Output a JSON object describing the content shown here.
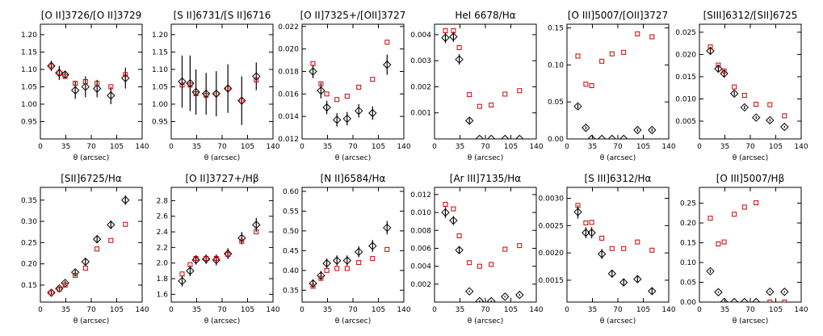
{
  "colors": {
    "obs": "#000000",
    "model": "#cc0000"
  },
  "xlabel": "θ (arcsec)",
  "chart_data": [
    {
      "type": "scatter",
      "title": "[O II]3726/[O II]3729",
      "xlim": [
        0,
        140
      ],
      "xticks": [
        0,
        35,
        70,
        105,
        140
      ],
      "ylim": [
        0.9,
        1.23
      ],
      "yticks": [
        0.95,
        1.0,
        1.05,
        1.1,
        1.15,
        1.2
      ],
      "ytick_labels": [
        "0.95",
        "1.00",
        "1.05",
        "1.10",
        "1.15",
        "1.20"
      ],
      "observed": {
        "marker": "diamond",
        "x": [
          15,
          26,
          34,
          48,
          62,
          78,
          97,
          117
        ],
        "y": [
          1.11,
          1.09,
          1.085,
          1.04,
          1.05,
          1.045,
          1.025,
          1.075
        ],
        "err": [
          0.015,
          0.02,
          0.01,
          0.025,
          0.03,
          0.025,
          0.025,
          0.03
        ]
      },
      "model": {
        "marker": "square",
        "x": [
          15,
          26,
          34,
          48,
          62,
          78,
          97,
          117
        ],
        "y": [
          1.11,
          1.09,
          1.08,
          1.06,
          1.065,
          1.06,
          1.05,
          1.085
        ]
      }
    },
    {
      "type": "scatter",
      "title": "[S II]6731/[S II]6716",
      "xlim": [
        0,
        140
      ],
      "xticks": [
        0,
        35,
        70,
        105,
        140
      ],
      "ylim": [
        0.9,
        1.23
      ],
      "yticks": [
        0.95,
        1.0,
        1.05,
        1.1,
        1.15,
        1.2
      ],
      "ytick_labels": [
        "0.95",
        "1.00",
        "1.05",
        "1.10",
        "1.15",
        "1.20"
      ],
      "observed": {
        "marker": "diamond",
        "x": [
          15,
          26,
          34,
          48,
          62,
          78,
          97,
          117
        ],
        "y": [
          1.065,
          1.06,
          1.035,
          1.03,
          1.03,
          1.045,
          1.01,
          1.08
        ],
        "err": [
          0.075,
          0.08,
          0.065,
          0.06,
          0.065,
          0.07,
          0.07,
          0.04
        ]
      },
      "model": {
        "marker": "square",
        "x": [
          15,
          26,
          34,
          48,
          62,
          78,
          97,
          117
        ],
        "y": [
          1.055,
          1.055,
          1.03,
          1.025,
          1.03,
          1.045,
          1.01,
          1.07
        ]
      }
    },
    {
      "type": "scatter",
      "title": "[O II]7325+/[OII]3727",
      "xlim": [
        0,
        140
      ],
      "xticks": [
        0,
        35,
        70,
        105,
        140
      ],
      "ylim": [
        0.012,
        0.0222
      ],
      "yticks": [
        0.012,
        0.014,
        0.016,
        0.018,
        0.02,
        0.022
      ],
      "ytick_labels": [
        "0.012",
        "0.014",
        "0.016",
        "0.018",
        "0.020",
        "0.022"
      ],
      "observed": {
        "marker": "diamond",
        "x": [
          15,
          26,
          34,
          48,
          62,
          78,
          97,
          117
        ],
        "y": [
          0.018,
          0.0163,
          0.0148,
          0.0137,
          0.0138,
          0.0145,
          0.0143,
          0.0186
        ],
        "err": [
          0.0006,
          0.0007,
          0.0006,
          0.0006,
          0.0006,
          0.0006,
          0.0006,
          0.0009
        ]
      },
      "model": {
        "marker": "square",
        "x": [
          15,
          26,
          34,
          48,
          62,
          78,
          97,
          117
        ],
        "y": [
          0.0187,
          0.0169,
          0.016,
          0.0155,
          0.0158,
          0.0166,
          0.0173,
          0.0206
        ]
      }
    },
    {
      "type": "scatter",
      "title": "HeI 6678/Hα",
      "xlim": [
        0,
        140
      ],
      "xticks": [
        0,
        35,
        70,
        105,
        140
      ],
      "ylim": [
        0.0,
        0.0044
      ],
      "yticks": [
        0.001,
        0.002,
        0.003,
        0.004
      ],
      "ytick_labels": [
        "0.001",
        "0.002",
        "0.003",
        "0.004"
      ],
      "observed": {
        "marker": "diamond",
        "x": [
          15,
          26,
          34,
          48,
          62,
          78,
          97,
          117
        ],
        "y": [
          0.00388,
          0.00392,
          0.00305,
          0.0007,
          0.0,
          0.0,
          0.0,
          0.0
        ],
        "err": [
          0.0002,
          0.0002,
          0.0002,
          0.0001,
          0.0,
          0.0,
          0.0,
          0.0
        ]
      },
      "model": {
        "marker": "square",
        "x": [
          15,
          26,
          34,
          48,
          62,
          78,
          97,
          117
        ],
        "y": [
          0.00415,
          0.00415,
          0.0035,
          0.0017,
          0.00125,
          0.0013,
          0.00172,
          0.00185
        ]
      }
    },
    {
      "type": "scatter",
      "title": "[O III]5007/[OII]3727",
      "xlim": [
        0,
        140
      ],
      "xticks": [
        0,
        35,
        70,
        105,
        140
      ],
      "ylim": [
        0.0,
        0.155
      ],
      "yticks": [
        0.0,
        0.05,
        0.1,
        0.15
      ],
      "ytick_labels": [
        "0.00",
        "0.05",
        "0.10",
        "0.15"
      ],
      "observed": {
        "marker": "diamond",
        "x": [
          15,
          26,
          34,
          48,
          62,
          78,
          97,
          117
        ],
        "y": [
          0.044,
          0.015,
          0.0,
          0.0,
          0.0,
          0.0,
          0.012,
          0.012
        ],
        "err": [
          0.003,
          0.002,
          0.0,
          0.0,
          0.0,
          0.0,
          0.002,
          0.002
        ]
      },
      "model": {
        "marker": "square",
        "x": [
          15,
          26,
          34,
          48,
          62,
          78,
          97,
          117
        ],
        "y": [
          0.112,
          0.074,
          0.072,
          0.105,
          0.115,
          0.117,
          0.142,
          0.138
        ]
      }
    },
    {
      "type": "scatter",
      "title": "[SIII]6312/[SII]6725",
      "xlim": [
        0,
        140
      ],
      "xticks": [
        0,
        35,
        70,
        105,
        140
      ],
      "ylim": [
        0.001,
        0.0268
      ],
      "yticks": [
        0.005,
        0.01,
        0.015,
        0.02,
        0.025
      ],
      "ytick_labels": [
        "0.005",
        "0.010",
        "0.015",
        "0.020",
        "0.025"
      ],
      "observed": {
        "marker": "diamond",
        "x": [
          15,
          26,
          34,
          48,
          62,
          78,
          97,
          117
        ],
        "y": [
          0.0208,
          0.0168,
          0.0157,
          0.0112,
          0.0081,
          0.0058,
          0.0052,
          0.0037
        ],
        "err": [
          0.0008,
          0.0007,
          0.0007,
          0.0005,
          0.0004,
          0.0003,
          0.0003,
          0.0002
        ]
      },
      "model": {
        "marker": "square",
        "x": [
          15,
          26,
          34,
          48,
          62,
          78,
          97,
          117
        ],
        "y": [
          0.0217,
          0.0176,
          0.0163,
          0.0127,
          0.0108,
          0.0088,
          0.0087,
          0.0062
        ]
      }
    },
    {
      "type": "scatter",
      "title": "[SII]6725/Hα",
      "xlim": [
        0,
        140
      ],
      "xticks": [
        0,
        35,
        70,
        105,
        140
      ],
      "ylim": [
        0.11,
        0.38
      ],
      "yticks": [
        0.15,
        0.2,
        0.25,
        0.3,
        0.35
      ],
      "ytick_labels": [
        "0.15",
        "0.20",
        "0.25",
        "0.30",
        "0.35"
      ],
      "observed": {
        "marker": "diamond",
        "x": [
          15,
          26,
          34,
          48,
          62,
          78,
          97,
          117
        ],
        "y": [
          0.132,
          0.142,
          0.155,
          0.18,
          0.205,
          0.258,
          0.292,
          0.35
        ],
        "err": [
          0.004,
          0.005,
          0.005,
          0.006,
          0.007,
          0.009,
          0.01,
          0.011
        ]
      },
      "model": {
        "marker": "square",
        "x": [
          15,
          26,
          34,
          48,
          62,
          78,
          97,
          117
        ],
        "y": [
          0.132,
          0.14,
          0.15,
          0.173,
          0.19,
          0.235,
          0.255,
          0.293
        ]
      }
    },
    {
      "type": "scatter",
      "title": "[O II]3727+/Hβ",
      "xlim": [
        0,
        140
      ],
      "xticks": [
        0,
        35,
        70,
        105,
        140
      ],
      "ylim": [
        1.5,
        2.97
      ],
      "yticks": [
        1.6,
        1.8,
        2.0,
        2.2,
        2.4,
        2.6,
        2.8
      ],
      "ytick_labels": [
        "1.6",
        "1.8",
        "2.0",
        "2.2",
        "2.4",
        "2.6",
        "2.8"
      ],
      "observed": {
        "marker": "diamond",
        "x": [
          15,
          26,
          34,
          48,
          62,
          78,
          97,
          117
        ],
        "y": [
          1.77,
          1.9,
          2.04,
          2.05,
          2.04,
          2.12,
          2.32,
          2.49
        ],
        "err": [
          0.07,
          0.07,
          0.06,
          0.06,
          0.07,
          0.07,
          0.08,
          0.09
        ]
      },
      "model": {
        "marker": "square",
        "x": [
          15,
          26,
          34,
          48,
          62,
          78,
          97,
          117
        ],
        "y": [
          1.86,
          1.98,
          2.06,
          2.06,
          2.06,
          2.11,
          2.28,
          2.4
        ]
      }
    },
    {
      "type": "scatter",
      "title": "[N II]6584/Hα",
      "xlim": [
        0,
        140
      ],
      "xticks": [
        0,
        35,
        70,
        105,
        140
      ],
      "ylim": [
        0.32,
        0.61
      ],
      "yticks": [
        0.35,
        0.4,
        0.45,
        0.5,
        0.55,
        0.6
      ],
      "ytick_labels": [
        "0.35",
        "0.40",
        "0.45",
        "0.50",
        "0.55",
        "0.60"
      ],
      "observed": {
        "marker": "diamond",
        "x": [
          15,
          26,
          34,
          48,
          62,
          78,
          97,
          117
        ],
        "y": [
          0.367,
          0.387,
          0.418,
          0.425,
          0.425,
          0.447,
          0.462,
          0.508
        ],
        "err": [
          0.01,
          0.012,
          0.012,
          0.013,
          0.013,
          0.014,
          0.015,
          0.017
        ]
      },
      "model": {
        "marker": "square",
        "x": [
          15,
          26,
          34,
          48,
          62,
          78,
          97,
          117
        ],
        "y": [
          0.36,
          0.38,
          0.4,
          0.405,
          0.405,
          0.42,
          0.43,
          0.453
        ]
      }
    },
    {
      "type": "scatter",
      "title": "[Ar III]7135/Hα",
      "xlim": [
        0,
        140
      ],
      "xticks": [
        0,
        35,
        70,
        105,
        140
      ],
      "ylim": [
        0.0,
        0.0128
      ],
      "yticks": [
        0.002,
        0.004,
        0.006,
        0.008,
        0.01,
        0.012
      ],
      "ytick_labels": [
        "0.002",
        "0.004",
        "0.006",
        "0.008",
        "0.010",
        "0.012"
      ],
      "observed": {
        "marker": "diamond",
        "x": [
          15,
          26,
          34,
          48,
          62,
          78,
          97,
          117
        ],
        "y": [
          0.01,
          0.0091,
          0.0058,
          0.0012,
          0.0001,
          0.0001,
          0.0006,
          0.0008
        ],
        "err": [
          0.0006,
          0.0005,
          0.0004,
          0.0001,
          0.0001,
          0.0001,
          0.0001,
          0.0001
        ]
      },
      "model": {
        "marker": "square",
        "x": [
          15,
          26,
          34,
          48,
          62,
          78,
          97,
          117
        ],
        "y": [
          0.0109,
          0.0104,
          0.0074,
          0.0044,
          0.004,
          0.0042,
          0.0059,
          0.0063
        ]
      }
    },
    {
      "type": "scatter",
      "title": "[S III]6312/Hα",
      "xlim": [
        0,
        140
      ],
      "xticks": [
        0,
        35,
        70,
        105,
        140
      ],
      "ylim": [
        0.0011,
        0.0032
      ],
      "yticks": [
        0.0015,
        0.002,
        0.0025,
        0.003
      ],
      "ytick_labels": [
        "0.0015",
        "0.0020",
        "0.0025",
        "0.0030"
      ],
      "observed": {
        "marker": "diamond",
        "x": [
          15,
          26,
          34,
          48,
          62,
          78,
          97,
          117
        ],
        "y": [
          0.00275,
          0.00237,
          0.00237,
          0.00198,
          0.00162,
          0.00146,
          0.00152,
          0.0013
        ],
        "err": [
          0.00012,
          0.0001,
          0.0001,
          9e-05,
          7e-05,
          7e-05,
          7e-05,
          6e-05
        ]
      },
      "model": {
        "marker": "square",
        "x": [
          15,
          26,
          34,
          48,
          62,
          78,
          97,
          117
        ],
        "y": [
          0.00287,
          0.00255,
          0.00256,
          0.00227,
          0.00208,
          0.00208,
          0.0022,
          0.00205
        ]
      }
    },
    {
      "type": "scatter",
      "title": "[O III]5007/Hβ",
      "xlim": [
        0,
        140
      ],
      "xticks": [
        0,
        35,
        70,
        105,
        140
      ],
      "ylim": [
        0.0,
        0.29
      ],
      "yticks": [
        0.0,
        0.05,
        0.1,
        0.15,
        0.2,
        0.25
      ],
      "ytick_labels": [
        "0.00",
        "0.05",
        "0.10",
        "0.15",
        "0.20",
        "0.25"
      ],
      "observed": {
        "marker": "diamond",
        "x": [
          15,
          26,
          34,
          48,
          62,
          78,
          97,
          117
        ],
        "y": [
          0.078,
          0.025,
          0.0,
          0.0,
          0.0,
          0.0,
          0.026,
          0.026
        ],
        "err": [
          0.004,
          0.002,
          0.0,
          0.0,
          0.0,
          0.0,
          0.002,
          0.002
        ]
      },
      "model": {
        "marker": "square",
        "x": [
          15,
          26,
          34,
          48,
          62,
          78,
          97,
          117
        ],
        "y": [
          0.212,
          0.147,
          0.152,
          0.222,
          0.24,
          0.251,
          0.0,
          0.0
        ]
      }
    }
  ]
}
